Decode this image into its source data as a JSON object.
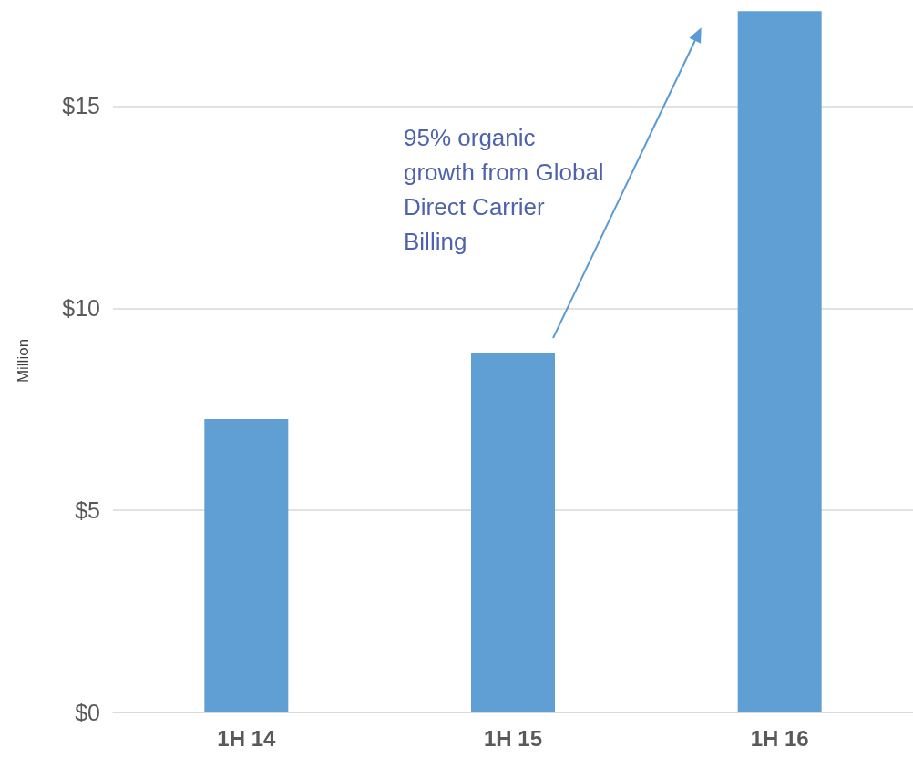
{
  "chart_data": {
    "type": "bar",
    "ylabel": "Million",
    "categories": [
      "1H 14",
      "1H 15",
      "1H 16"
    ],
    "values": [
      7.26,
      8.9,
      17.35
    ],
    "color": "#609fd3",
    "ylim": [
      0,
      17.4
    ],
    "yticks": [
      {
        "value": 0,
        "label": "$0"
      },
      {
        "value": 5,
        "label": "$5"
      },
      {
        "value": 10,
        "label": "$10"
      },
      {
        "value": 15,
        "label": "$15"
      }
    ],
    "grid": "y",
    "annotations": [
      "95% organic growth from Global Direct Carrier Billing"
    ]
  }
}
